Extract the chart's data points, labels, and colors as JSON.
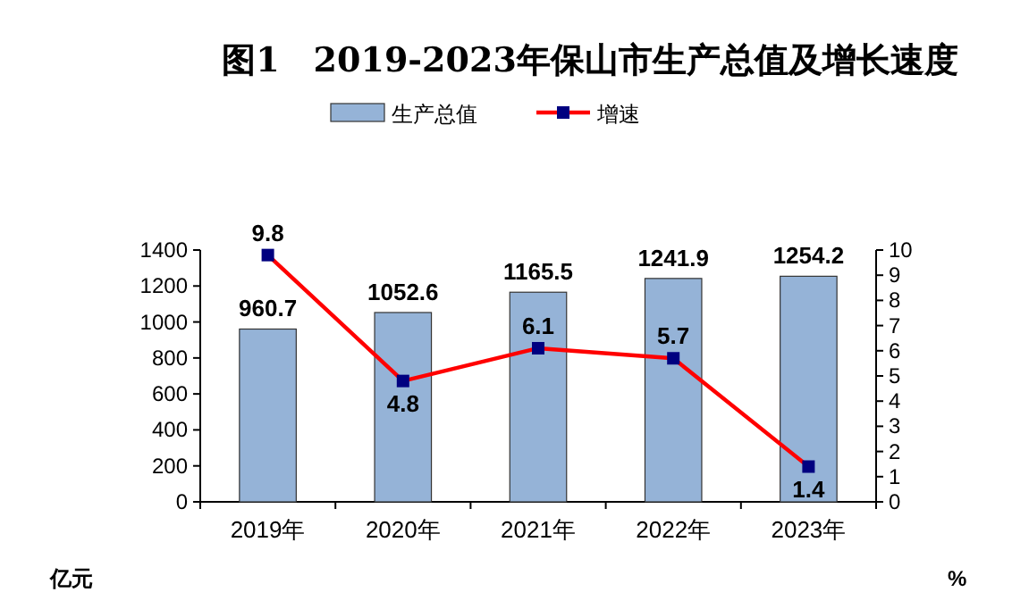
{
  "chart_data": {
    "type": "bar",
    "title": "图1　2019-2023年保山市生产总值及增长速度",
    "categories": [
      "2019年",
      "2020年",
      "2021年",
      "2022年",
      "2023年"
    ],
    "series": [
      {
        "name": "生产总值",
        "color": "#95b3d7",
        "values": [
          960.7,
          1052.6,
          1165.5,
          1241.9,
          1254.2
        ]
      },
      {
        "name": "增速",
        "type": "line",
        "axis": "y2",
        "color": "#ff0000",
        "values": [
          9.8,
          4.8,
          6.1,
          5.7,
          1.4
        ]
      }
    ],
    "ylabel": "亿元",
    "y2label": "%",
    "ylim": [
      0,
      1400
    ],
    "yticks": [
      0,
      200,
      400,
      600,
      800,
      1000,
      1200,
      1400
    ],
    "y2lim": [
      0,
      10
    ],
    "y2ticks": [
      0,
      1,
      2,
      3,
      4,
      5,
      6,
      7,
      8,
      9,
      10
    ],
    "data_labels": true,
    "legend": "top",
    "marker": "square",
    "grid": false
  }
}
